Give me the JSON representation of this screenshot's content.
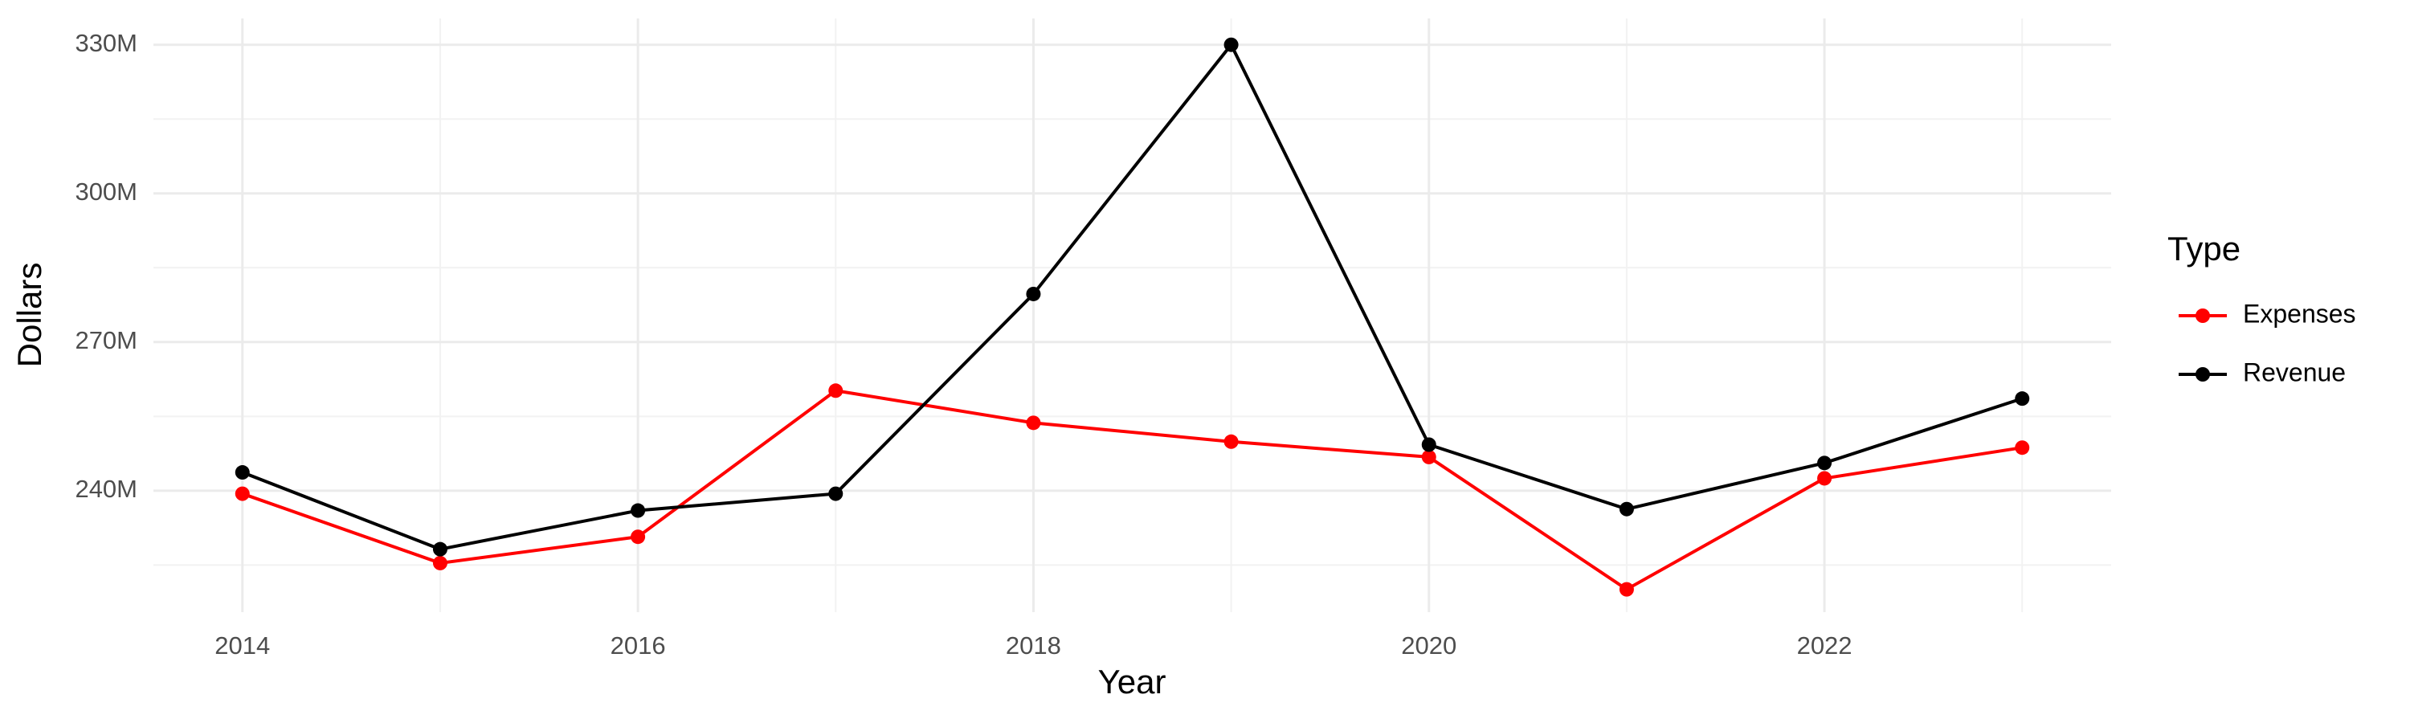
{
  "chart_data": {
    "type": "line",
    "x_label": "Year",
    "y_label": "Dollars",
    "legend_title": "Type",
    "legend": "right",
    "grid": true,
    "x": [
      2014,
      2015,
      2016,
      2017,
      2018,
      2019,
      2020,
      2021,
      2022,
      2023
    ],
    "series": [
      {
        "name": "Expenses",
        "color": "#ff0000",
        "values": [
          239400000,
          225400000,
          230700000,
          260200000,
          253700000,
          249900000,
          246800000,
          220100000,
          242500000,
          248700000
        ]
      },
      {
        "name": "Revenue",
        "color": "#000000",
        "values": [
          243700000,
          228200000,
          236000000,
          239400000,
          279700000,
          330000000,
          249300000,
          236300000,
          245600000,
          258600000
        ]
      }
    ],
    "xlim": [
      2013.55,
      2023.45
    ],
    "xticks": [
      2014,
      2016,
      2018,
      2020,
      2022
    ],
    "ylim": [
      215500000,
      335300000
    ],
    "yticks": [
      {
        "value": 240000000,
        "label": "240M"
      },
      {
        "value": 270000000,
        "label": "270M"
      },
      {
        "value": 300000000,
        "label": "300M"
      },
      {
        "value": 330000000,
        "label": "330M"
      }
    ]
  }
}
